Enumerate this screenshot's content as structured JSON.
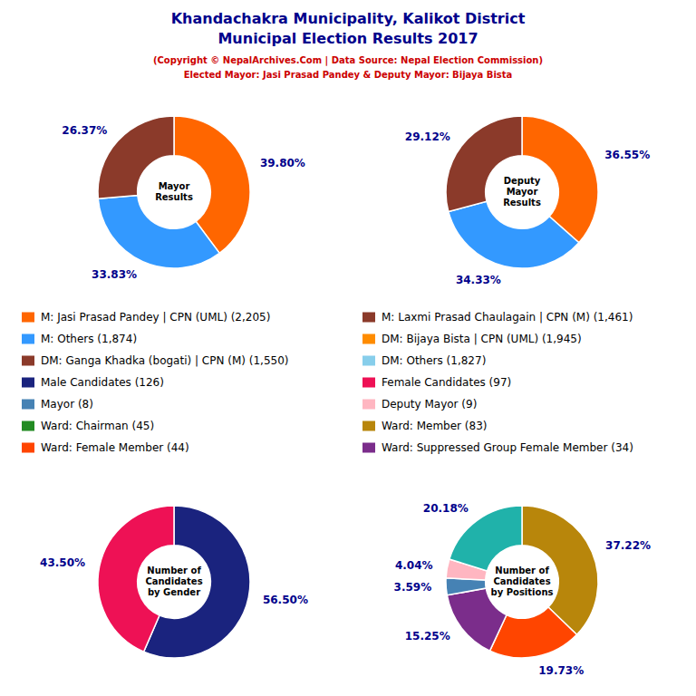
{
  "title": [
    "Khandachakra Municipality, Kalikot District",
    "Municipal Election Results 2017"
  ],
  "subtitle": [
    "(Copyright © NepalArchives.Com | Data Source: Nepal Election Commission)",
    "Elected Mayor: Jasi Prasad Pandey & Deputy Mayor: Bijaya Bista"
  ],
  "title_color": "#00008B",
  "subtitle_color": "#CC0000",
  "data_label_color": "#00008B",
  "chart_data": [
    {
      "type": "pie",
      "title": "Mayor\nResults",
      "values": [
        39.8,
        33.83,
        26.37
      ],
      "value_labels": [
        "39.80%",
        "33.83%",
        "26.37%"
      ],
      "colors": [
        "#FF6600",
        "#3399FF",
        "#8B3A2A"
      ],
      "data_labels": true
    },
    {
      "type": "pie",
      "title": "Deputy\nMayor\nResults",
      "values": [
        36.55,
        34.33,
        29.12
      ],
      "value_labels": [
        "36.55%",
        "34.33%",
        "29.12%"
      ],
      "colors": [
        "#FF6600",
        "#3399FF",
        "#8B3A2A"
      ],
      "data_labels": true
    },
    {
      "type": "pie",
      "title": "Number of\nCandidates\nby Gender",
      "values": [
        56.5,
        43.5
      ],
      "value_labels": [
        "56.50%",
        "43.50%"
      ],
      "colors": [
        "#1A237E",
        "#EE1155"
      ],
      "data_labels": true
    },
    {
      "type": "pie",
      "title": "Number of\nCandidates\nby Positions",
      "values": [
        37.22,
        19.73,
        15.25,
        3.59,
        4.04,
        20.18
      ],
      "value_labels": [
        "37.22%",
        "19.73%",
        "15.25%",
        "3.59%",
        "4.04%",
        "20.18%"
      ],
      "colors": [
        "#B8860B",
        "#FF4500",
        "#7B2D8B",
        "#4682B4",
        "#FFB6C1",
        "#20B2AA"
      ],
      "data_labels": true
    }
  ],
  "legend_items": [
    [
      {
        "label": "M: Jasi Prasad Pandey | CPN (UML) (2,205)",
        "color": "#FF6600"
      },
      {
        "label": "M: Others (1,874)",
        "color": "#3399FF"
      },
      {
        "label": "DM: Ganga Khadka (bogati) | CPN (M) (1,550)",
        "color": "#8B3A2A"
      },
      {
        "label": "Male Candidates (126)",
        "color": "#1A237E"
      },
      {
        "label": "Mayor (8)",
        "color": "#4682B4"
      },
      {
        "label": "Ward: Chairman (45)",
        "color": "#228B22"
      },
      {
        "label": "Ward: Female Member (44)",
        "color": "#FF4500"
      }
    ],
    [
      {
        "label": "M: Laxmi Prasad Chaulagain | CPN (M) (1,461)",
        "color": "#8B3A2A"
      },
      {
        "label": "DM: Bijaya Bista | CPN (UML) (1,945)",
        "color": "#FF8C00"
      },
      {
        "label": "DM: Others (1,827)",
        "color": "#87CEEB"
      },
      {
        "label": "Female Candidates (97)",
        "color": "#EE1155"
      },
      {
        "label": "Deputy Mayor (9)",
        "color": "#FFB6C1"
      },
      {
        "label": "Ward: Member (83)",
        "color": "#B8860B"
      },
      {
        "label": "Ward: Suppressed Group Female Member (34)",
        "color": "#7B2D8B"
      }
    ]
  ]
}
